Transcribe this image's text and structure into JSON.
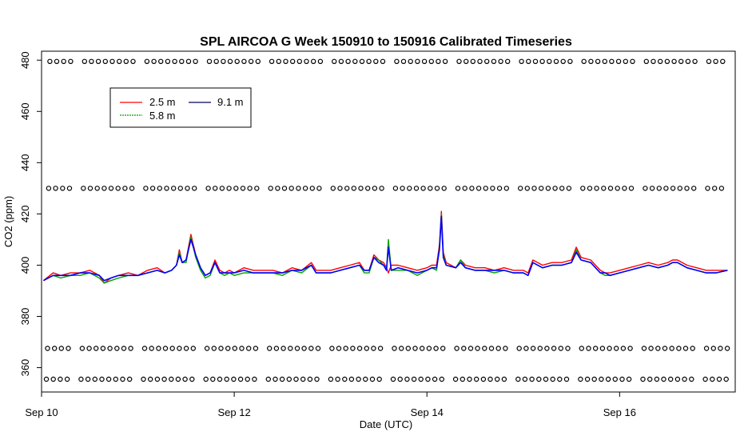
{
  "chart_data": {
    "type": "line",
    "title": "SPL AIRCOA G  Week 150910 to 150916  Calibrated Timeseries",
    "xlabel": "Date (UTC)",
    "ylabel": "CO2 (ppm)",
    "xlim": [
      10.0,
      17.2
    ],
    "ylim": [
      350.5,
      483.5
    ],
    "grid": false,
    "legend_position": "top-left",
    "x_ticks": [
      {
        "value": 10,
        "label": "Sep 10"
      },
      {
        "value": 12,
        "label": "Sep 12"
      },
      {
        "value": 14,
        "label": "Sep 14"
      },
      {
        "value": 16,
        "label": "Sep 16"
      }
    ],
    "y_ticks": [
      {
        "value": 360,
        "label": "360"
      },
      {
        "value": 380,
        "label": "380"
      },
      {
        "value": 400,
        "label": "400"
      },
      {
        "value": 420,
        "label": "420"
      },
      {
        "value": 440,
        "label": "440"
      },
      {
        "value": 460,
        "label": "460"
      },
      {
        "value": 480,
        "label": "480"
      }
    ],
    "series": [
      {
        "name": "2.5 m",
        "color": "#ff0000",
        "x": [
          10.02,
          10.12,
          10.2,
          10.3,
          10.4,
          10.5,
          10.6,
          10.65,
          10.72,
          10.8,
          10.9,
          11.0,
          11.1,
          11.2,
          11.28,
          11.35,
          11.4,
          11.43,
          11.46,
          11.5,
          11.55,
          11.6,
          11.65,
          11.7,
          11.75,
          11.8,
          11.85,
          11.9,
          11.95,
          12.0,
          12.1,
          12.2,
          12.3,
          12.4,
          12.5,
          12.6,
          12.7,
          12.8,
          12.85,
          12.9,
          13.0,
          13.1,
          13.2,
          13.3,
          13.35,
          13.4,
          13.45,
          13.5,
          13.55,
          13.58,
          13.6,
          13.63,
          13.7,
          13.8,
          13.9,
          14.0,
          14.05,
          14.1,
          14.13,
          14.15,
          14.17,
          14.2,
          14.3,
          14.35,
          14.4,
          14.5,
          14.6,
          14.7,
          14.8,
          14.9,
          15.0,
          15.05,
          15.1,
          15.2,
          15.3,
          15.4,
          15.5,
          15.55,
          15.6,
          15.7,
          15.75,
          15.8,
          15.85,
          15.9,
          16.0,
          16.1,
          16.2,
          16.3,
          16.4,
          16.5,
          16.55,
          16.6,
          16.7,
          16.8,
          16.9,
          17.0,
          17.12
        ],
        "values": [
          394,
          397,
          396,
          397,
          397,
          398,
          396,
          393,
          395,
          396,
          397,
          396,
          398,
          399,
          397,
          398,
          400,
          406,
          401,
          402,
          412,
          404,
          399,
          396,
          397,
          402,
          398,
          397,
          398,
          397,
          399,
          398,
          398,
          398,
          397,
          399,
          398,
          401,
          398,
          398,
          398,
          399,
          400,
          401,
          398,
          398,
          404,
          402,
          401,
          399,
          397,
          400,
          400,
          399,
          398,
          399,
          400,
          400,
          408,
          421,
          405,
          401,
          399,
          402,
          400,
          399,
          399,
          398,
          399,
          398,
          398,
          397,
          402,
          400,
          401,
          401,
          402,
          407,
          403,
          402,
          400,
          398,
          397,
          397,
          398,
          399,
          400,
          401,
          400,
          401,
          402,
          402,
          400,
          399,
          398,
          398,
          398
        ]
      },
      {
        "name": "5.8 m",
        "color": "#00a000",
        "x": [
          10.02,
          10.12,
          10.2,
          10.3,
          10.4,
          10.5,
          10.6,
          10.65,
          10.72,
          10.8,
          10.9,
          11.0,
          11.1,
          11.2,
          11.28,
          11.35,
          11.4,
          11.43,
          11.46,
          11.5,
          11.55,
          11.6,
          11.65,
          11.7,
          11.75,
          11.8,
          11.85,
          11.9,
          11.95,
          12.0,
          12.1,
          12.2,
          12.3,
          12.4,
          12.5,
          12.6,
          12.7,
          12.8,
          12.85,
          12.9,
          13.0,
          13.1,
          13.2,
          13.3,
          13.35,
          13.4,
          13.45,
          13.5,
          13.55,
          13.58,
          13.6,
          13.63,
          13.7,
          13.8,
          13.9,
          14.0,
          14.05,
          14.1,
          14.13,
          14.15,
          14.17,
          14.2,
          14.3,
          14.35,
          14.4,
          14.5,
          14.6,
          14.7,
          14.8,
          14.9,
          15.0,
          15.05,
          15.1,
          15.2,
          15.3,
          15.4,
          15.5,
          15.55,
          15.6,
          15.7,
          15.75,
          15.8,
          15.85,
          15.9,
          16.0,
          16.1,
          16.2,
          16.3,
          16.4,
          16.5,
          16.55,
          16.6,
          16.7,
          16.8,
          16.9,
          17.0,
          17.12
        ],
        "values": [
          394,
          396,
          395,
          396,
          396,
          397,
          395,
          393,
          394,
          395,
          396,
          396,
          397,
          398,
          397,
          398,
          400,
          405,
          401,
          401,
          411,
          403,
          398,
          395,
          396,
          401,
          397,
          396,
          397,
          396,
          397,
          397,
          397,
          397,
          396,
          398,
          397,
          400,
          397,
          397,
          397,
          398,
          399,
          400,
          397,
          397,
          403,
          402,
          400,
          398,
          410,
          398,
          398,
          398,
          396,
          398,
          399,
          398,
          407,
          420,
          404,
          400,
          399,
          402,
          399,
          398,
          398,
          397,
          398,
          397,
          397,
          396,
          401,
          399,
          400,
          400,
          401,
          406,
          402,
          401,
          399,
          397,
          396,
          396,
          397,
          398,
          399,
          400,
          399,
          400,
          401,
          401,
          399,
          398,
          397,
          397,
          398
        ]
      },
      {
        "name": "9.1 m",
        "color": "#0000ff",
        "x": [
          10.02,
          10.12,
          10.2,
          10.3,
          10.4,
          10.5,
          10.6,
          10.65,
          10.72,
          10.8,
          10.9,
          11.0,
          11.1,
          11.2,
          11.28,
          11.35,
          11.4,
          11.43,
          11.46,
          11.5,
          11.55,
          11.6,
          11.65,
          11.7,
          11.75,
          11.8,
          11.85,
          11.9,
          11.95,
          12.0,
          12.1,
          12.2,
          12.3,
          12.4,
          12.5,
          12.6,
          12.7,
          12.8,
          12.85,
          12.9,
          13.0,
          13.1,
          13.2,
          13.3,
          13.35,
          13.4,
          13.45,
          13.5,
          13.55,
          13.58,
          13.6,
          13.63,
          13.7,
          13.8,
          13.9,
          14.0,
          14.05,
          14.1,
          14.13,
          14.15,
          14.17,
          14.2,
          14.3,
          14.35,
          14.4,
          14.5,
          14.6,
          14.7,
          14.8,
          14.9,
          15.0,
          15.05,
          15.1,
          15.2,
          15.3,
          15.4,
          15.5,
          15.55,
          15.6,
          15.7,
          15.75,
          15.8,
          15.85,
          15.9,
          16.0,
          16.1,
          16.2,
          16.3,
          16.4,
          16.5,
          16.55,
          16.6,
          16.7,
          16.8,
          16.9,
          17.0,
          17.12
        ],
        "values": [
          394,
          396,
          396,
          396,
          397,
          397,
          396,
          394,
          395,
          396,
          396,
          396,
          397,
          398,
          397,
          398,
          400,
          404,
          401,
          402,
          410,
          404,
          399,
          396,
          397,
          401,
          397,
          397,
          397,
          397,
          398,
          397,
          397,
          397,
          397,
          398,
          398,
          400,
          397,
          397,
          397,
          398,
          399,
          400,
          398,
          398,
          403,
          401,
          400,
          398,
          407,
          398,
          399,
          398,
          397,
          398,
          399,
          399,
          406,
          419,
          403,
          400,
          399,
          401,
          399,
          398,
          398,
          398,
          398,
          397,
          397,
          396,
          401,
          399,
          400,
          400,
          401,
          405,
          402,
          401,
          399,
          397,
          397,
          396,
          397,
          398,
          399,
          400,
          399,
          400,
          401,
          401,
          399,
          398,
          397,
          397,
          398
        ]
      },
      {
        "name": "",
        "color": "#000000",
        "marker": "open-circle",
        "style": "points at four flag levels",
        "levels": [
          355.5,
          367.5,
          430,
          479.5
        ],
        "x_start": 10.05,
        "x_end": 17.12,
        "x_step": 0.072
      }
    ]
  }
}
